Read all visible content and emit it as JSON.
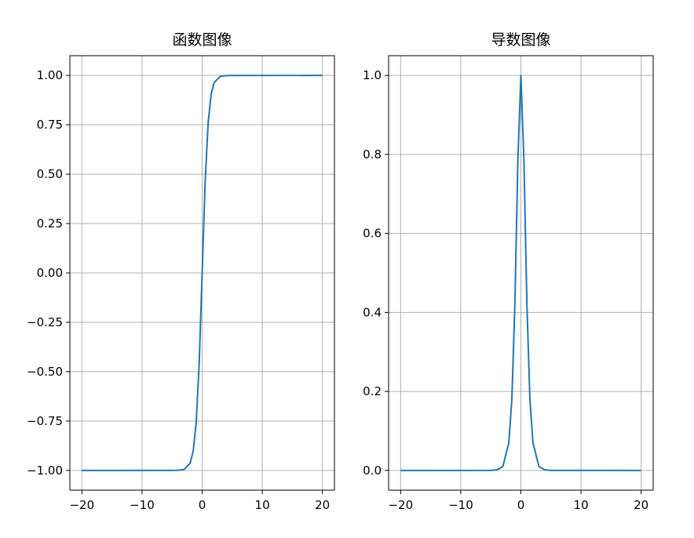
{
  "chart_data": [
    {
      "type": "line",
      "title": "函数图像",
      "xlabel": "",
      "ylabel": "",
      "function": "tanh(x)",
      "x_range": [
        -20,
        20
      ],
      "xlim": [
        -22,
        22
      ],
      "ylim": [
        -1.1,
        1.1
      ],
      "xticks": [
        -20,
        -10,
        0,
        10,
        20
      ],
      "xtick_labels": [
        "−20",
        "−10",
        "0",
        "10",
        "20"
      ],
      "yticks": [
        -1.0,
        -0.75,
        -0.5,
        -0.25,
        0.0,
        0.25,
        0.5,
        0.75,
        1.0
      ],
      "ytick_labels": [
        "−1.00",
        "−0.75",
        "−0.50",
        "−0.25",
        "0.00",
        "0.25",
        "0.50",
        "0.75",
        "1.00"
      ],
      "grid": true,
      "series": [
        {
          "color": "#1f77b4",
          "x": [
            -20,
            -5,
            -4,
            -3,
            -2,
            -1.5,
            -1,
            -0.5,
            0,
            0.5,
            1,
            1.5,
            2,
            3,
            4,
            5,
            20
          ],
          "y": [
            -1.0,
            -0.9999,
            -0.9993,
            -0.9951,
            -0.964,
            -0.9051,
            -0.7616,
            -0.4621,
            0.0,
            0.4621,
            0.7616,
            0.9051,
            0.964,
            0.9951,
            0.9993,
            0.9999,
            1.0
          ]
        }
      ]
    },
    {
      "type": "line",
      "title": "导数图像",
      "xlabel": "",
      "ylabel": "",
      "function": "1 - tanh(x)^2",
      "x_range": [
        -20,
        20
      ],
      "xlim": [
        -22,
        22
      ],
      "ylim": [
        -0.05,
        1.05
      ],
      "xticks": [
        -20,
        -10,
        0,
        10,
        20
      ],
      "xtick_labels": [
        "−20",
        "−10",
        "0",
        "10",
        "20"
      ],
      "yticks": [
        0.0,
        0.2,
        0.4,
        0.6,
        0.8,
        1.0
      ],
      "ytick_labels": [
        "0.0",
        "0.2",
        "0.4",
        "0.6",
        "0.8",
        "1.0"
      ],
      "grid": true,
      "series": [
        {
          "color": "#1f77b4",
          "x": [
            -20,
            -5,
            -4,
            -3,
            -2,
            -1.5,
            -1,
            -0.5,
            0,
            0.5,
            1,
            1.5,
            2,
            3,
            4,
            5,
            20
          ],
          "y": [
            0.0,
            0.0002,
            0.0013,
            0.0099,
            0.0707,
            0.1807,
            0.42,
            0.7864,
            1.0,
            0.7864,
            0.42,
            0.1807,
            0.0707,
            0.0099,
            0.0013,
            0.0002,
            0.0
          ]
        }
      ]
    }
  ]
}
